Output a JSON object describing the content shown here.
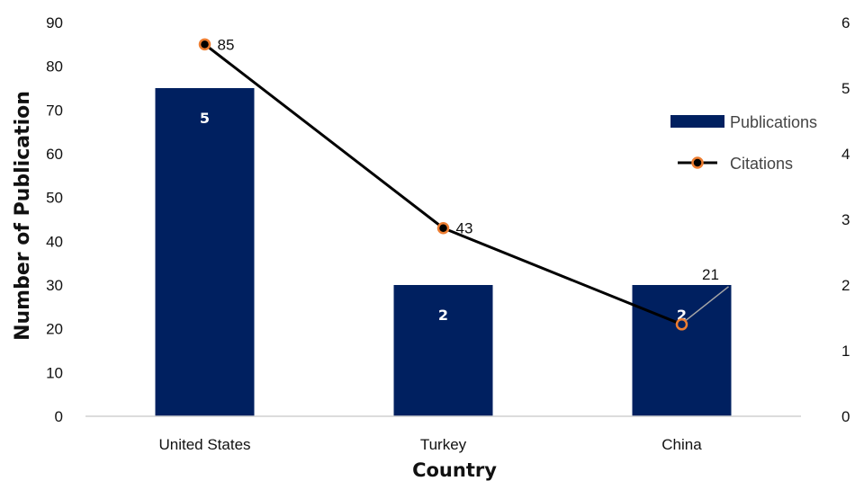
{
  "chart_data": {
    "type": "bar",
    "title": "",
    "xlabel": "Country",
    "ylabel": "Number of Publication",
    "categories": [
      "United States",
      "Turkey",
      "China"
    ],
    "ylim": [
      0,
      90
    ],
    "yticks": [
      0,
      10,
      20,
      30,
      40,
      50,
      60,
      70,
      80,
      90
    ],
    "y2lim": [
      0,
      6
    ],
    "y2ticks": [
      0,
      1,
      2,
      3,
      4,
      5,
      6
    ],
    "series": [
      {
        "name": "Publications",
        "type": "bar",
        "axis": "secondary",
        "values": [
          5,
          2,
          2
        ],
        "data_labels": [
          "5",
          "2",
          "2"
        ],
        "color": "#002060"
      },
      {
        "name": "Citations",
        "type": "line",
        "axis": "primary",
        "values": [
          85,
          43,
          21
        ],
        "data_labels": [
          "85",
          "43",
          "21"
        ],
        "color": "#000000",
        "marker_edge_color": "#ED7D31"
      }
    ],
    "grid": false,
    "legend_position": "right"
  }
}
